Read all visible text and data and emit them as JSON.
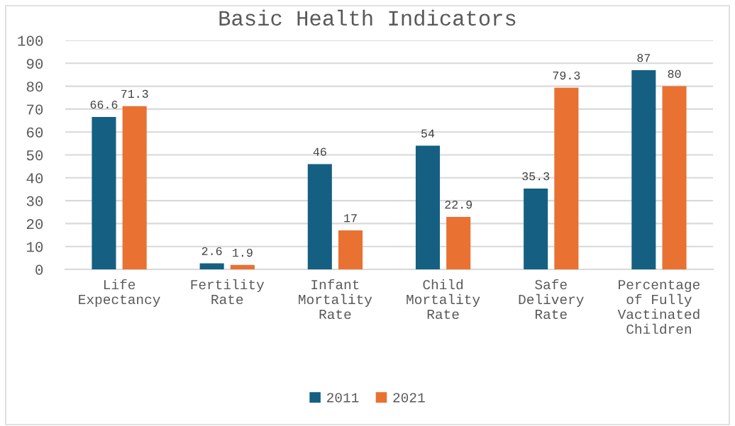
{
  "chart_data": {
    "type": "bar",
    "title": "Basic Health Indicators",
    "categories": [
      "Life\nExpectancy",
      "Fertility\nRate",
      "Infant\nMortality\nRate",
      "Child\nMortality\nRate",
      "Safe\nDelivery\nRate",
      "Percentage\nof Fully\nVactinated\nChildren"
    ],
    "series": [
      {
        "name": "2011",
        "color": "#156082",
        "values": [
          66.6,
          2.6,
          46,
          54,
          35.3,
          87
        ]
      },
      {
        "name": "2021",
        "color": "#e97132",
        "values": [
          71.3,
          1.9,
          17,
          22.9,
          79.3,
          80
        ]
      }
    ],
    "ylim": [
      0,
      100
    ],
    "yticks": [
      0,
      10,
      20,
      30,
      40,
      50,
      60,
      70,
      80,
      90,
      100
    ],
    "grid": "y",
    "legend": "bottom",
    "data_labels": true
  }
}
